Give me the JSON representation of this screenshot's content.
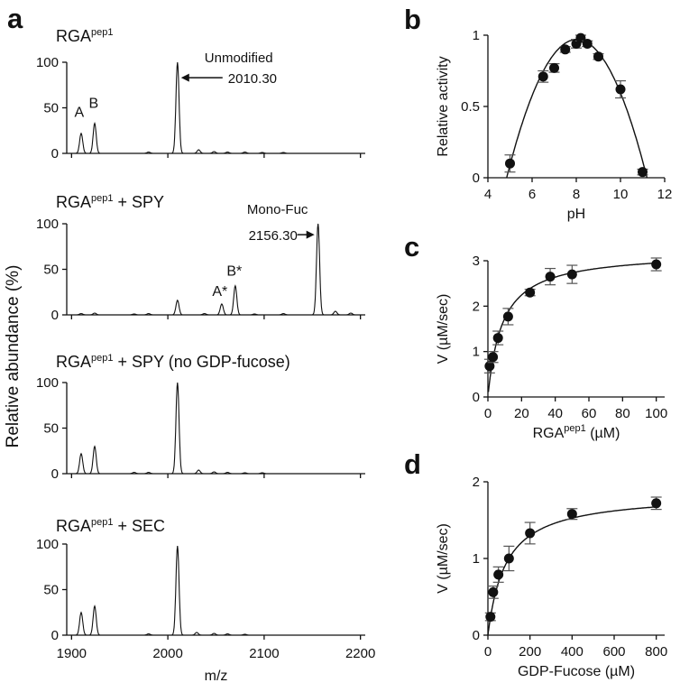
{
  "panel_letters": {
    "a": "a",
    "b": "b",
    "c": "c",
    "d": "d"
  },
  "colors": {
    "line": "#111111",
    "marker": "#111111",
    "errorbar": "#555555"
  },
  "chart_data": [
    {
      "id": "a",
      "type": "line",
      "kind": "mass-spectra-stack",
      "xlabel": "m/z",
      "ylabel": "Relative abundance (%)",
      "xlim": [
        1895,
        2205
      ],
      "xticks": [
        1900,
        2000,
        2100,
        2200
      ],
      "xtick_labels": [
        "1900",
        "2000",
        "2100",
        "2200"
      ],
      "ylim": [
        0,
        100
      ],
      "yticks": [
        0,
        50,
        100
      ],
      "ytick_labels": [
        "0",
        "50",
        "100"
      ],
      "spectra": [
        {
          "title": "RGA",
          "title_sup": "pep1",
          "title_suffix": "",
          "peaks": [
            {
              "mz": 1910,
              "h": 22
            },
            {
              "mz": 1924,
              "h": 33
            },
            {
              "mz": 1980,
              "h": 1.5
            },
            {
              "mz": 2010,
              "h": 100
            },
            {
              "mz": 2032,
              "h": 4
            },
            {
              "mz": 2048,
              "h": 2
            },
            {
              "mz": 2062,
              "h": 1.5
            },
            {
              "mz": 2080,
              "h": 1.5
            },
            {
              "mz": 2098,
              "h": 1
            },
            {
              "mz": 2120,
              "h": 1
            }
          ],
          "labels": [
            {
              "text": "A",
              "mz": 1908,
              "h": 40
            },
            {
              "text": "B",
              "mz": 1923,
              "h": 50
            }
          ],
          "annotations": [
            {
              "lines": [
                "Unmodified",
                "2010.30"
              ],
              "arrow_to_mz": 2010,
              "arrow_to_h": 83
            }
          ]
        },
        {
          "title": "RGA",
          "title_sup": "pep1",
          "title_suffix": " + SPY",
          "peaks": [
            {
              "mz": 1910,
              "h": 1.5
            },
            {
              "mz": 1924,
              "h": 2
            },
            {
              "mz": 1965,
              "h": 1
            },
            {
              "mz": 1980,
              "h": 1.5
            },
            {
              "mz": 2010,
              "h": 16
            },
            {
              "mz": 2038,
              "h": 1.5
            },
            {
              "mz": 2056,
              "h": 12
            },
            {
              "mz": 2070,
              "h": 32
            },
            {
              "mz": 2090,
              "h": 1
            },
            {
              "mz": 2120,
              "h": 1.5
            },
            {
              "mz": 2156,
              "h": 100
            },
            {
              "mz": 2174,
              "h": 4
            },
            {
              "mz": 2190,
              "h": 2
            }
          ],
          "labels": [
            {
              "text": "A*",
              "mz": 2054,
              "h": 21
            },
            {
              "text": "B*",
              "mz": 2069,
              "h": 43
            }
          ],
          "annotations": [
            {
              "lines": [
                "Mono-Fuc",
                "2156.30"
              ],
              "arrow_to_mz": 2156,
              "arrow_to_h": 88
            }
          ]
        },
        {
          "title": "RGA",
          "title_sup": "pep1",
          "title_suffix": " + SPY (no GDP-fucose)",
          "peaks": [
            {
              "mz": 1910,
              "h": 22
            },
            {
              "mz": 1924,
              "h": 30
            },
            {
              "mz": 1965,
              "h": 1.5
            },
            {
              "mz": 1980,
              "h": 1.5
            },
            {
              "mz": 2010,
              "h": 100
            },
            {
              "mz": 2032,
              "h": 4
            },
            {
              "mz": 2048,
              "h": 2
            },
            {
              "mz": 2062,
              "h": 1.5
            },
            {
              "mz": 2080,
              "h": 1
            },
            {
              "mz": 2098,
              "h": 1
            }
          ],
          "labels": [],
          "annotations": []
        },
        {
          "title": "RGA",
          "title_sup": "pep1",
          "title_suffix": " + SEC",
          "peaks": [
            {
              "mz": 1910,
              "h": 25
            },
            {
              "mz": 1924,
              "h": 32
            },
            {
              "mz": 1980,
              "h": 1.5
            },
            {
              "mz": 2010,
              "h": 98
            },
            {
              "mz": 2030,
              "h": 3
            },
            {
              "mz": 2048,
              "h": 2
            },
            {
              "mz": 2062,
              "h": 1.5
            },
            {
              "mz": 2080,
              "h": 1
            }
          ],
          "labels": [],
          "annotations": []
        }
      ]
    },
    {
      "id": "b",
      "type": "scatter",
      "xlabel": "pH",
      "ylabel": "Relative activity",
      "xlim": [
        4,
        12
      ],
      "xticks": [
        4,
        6,
        8,
        10,
        12
      ],
      "ylim": [
        0,
        1
      ],
      "yticks": [
        0,
        0.5,
        1
      ],
      "ytick_labels": [
        "0",
        "0.5",
        "1"
      ],
      "points": [
        {
          "x": 5.0,
          "y": 0.1,
          "err": 0.06
        },
        {
          "x": 6.5,
          "y": 0.71,
          "err": 0.04
        },
        {
          "x": 7.0,
          "y": 0.77,
          "err": 0.03
        },
        {
          "x": 7.5,
          "y": 0.9,
          "err": 0.02
        },
        {
          "x": 8.0,
          "y": 0.94,
          "err": 0.03
        },
        {
          "x": 8.2,
          "y": 0.98,
          "err": 0.02
        },
        {
          "x": 8.5,
          "y": 0.94,
          "err": 0.02
        },
        {
          "x": 9.0,
          "y": 0.85,
          "err": 0.02
        },
        {
          "x": 10.0,
          "y": 0.62,
          "err": 0.06
        },
        {
          "x": 11.0,
          "y": 0.04,
          "err": 0.02
        }
      ],
      "fit": {
        "model": "quadratic",
        "roots": [
          4.85,
          11.2
        ],
        "ymax": 0.97
      }
    },
    {
      "id": "c",
      "type": "scatter",
      "xlabel": "RGA",
      "xlabel_sup": "pep1",
      "xlabel_suffix": " (µM)",
      "ylabel": "V (µM/sec)",
      "xlim": [
        0,
        105
      ],
      "xticks": [
        0,
        20,
        40,
        60,
        80,
        100
      ],
      "ylim": [
        0,
        3
      ],
      "yticks": [
        0,
        1,
        2,
        3
      ],
      "points": [
        {
          "x": 1,
          "y": 0.68,
          "err": 0.15
        },
        {
          "x": 3,
          "y": 0.88,
          "err": 0.12
        },
        {
          "x": 6,
          "y": 1.3,
          "err": 0.15
        },
        {
          "x": 12,
          "y": 1.77,
          "err": 0.18
        },
        {
          "x": 25,
          "y": 2.3,
          "err": 0.07
        },
        {
          "x": 37,
          "y": 2.65,
          "err": 0.18
        },
        {
          "x": 50,
          "y": 2.7,
          "err": 0.2
        },
        {
          "x": 100,
          "y": 2.92,
          "err": 0.14
        }
      ],
      "fit": {
        "model": "michaelis-menten",
        "vmax": 3.2,
        "km": 8.5
      }
    },
    {
      "id": "d",
      "type": "scatter",
      "xlabel": "GDP-Fucose (µM)",
      "ylabel": "V (µM/sec)",
      "xlim": [
        0,
        840
      ],
      "xticks": [
        0,
        200,
        400,
        600,
        800
      ],
      "ylim": [
        0,
        2
      ],
      "yticks": [
        0,
        1,
        2
      ],
      "points": [
        {
          "x": 12,
          "y": 0.24,
          "err": 0.05
        },
        {
          "x": 25,
          "y": 0.56,
          "err": 0.08
        },
        {
          "x": 50,
          "y": 0.79,
          "err": 0.1
        },
        {
          "x": 100,
          "y": 1.0,
          "err": 0.16
        },
        {
          "x": 200,
          "y": 1.33,
          "err": 0.14
        },
        {
          "x": 400,
          "y": 1.58,
          "err": 0.07
        },
        {
          "x": 800,
          "y": 1.72,
          "err": 0.08
        }
      ],
      "fit": {
        "model": "michaelis-menten",
        "vmax": 1.85,
        "km": 85
      }
    }
  ]
}
